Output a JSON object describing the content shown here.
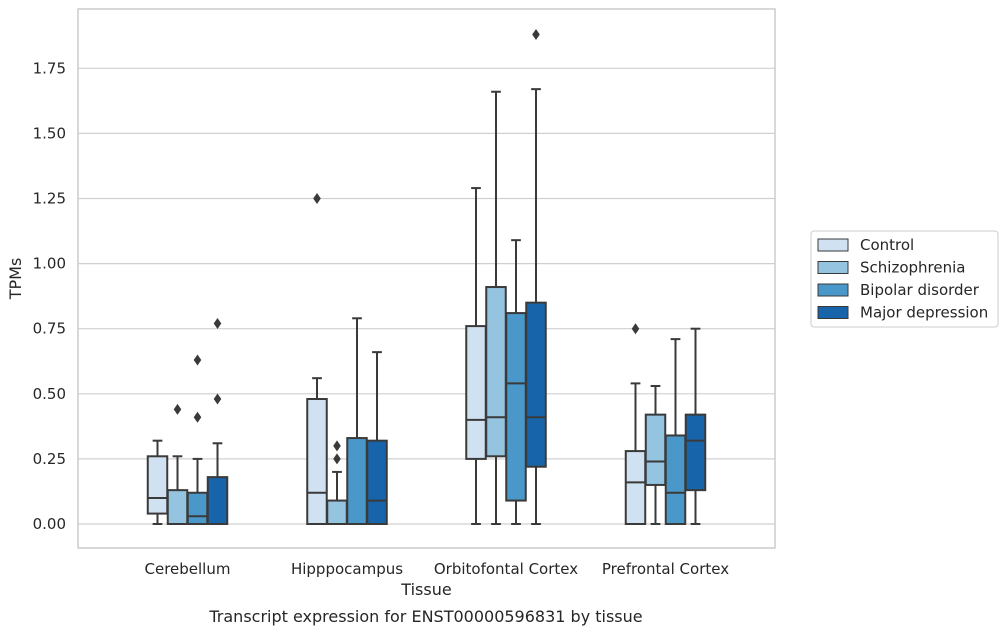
{
  "caption": "Transcript expression for ENST00000596831 by tissue",
  "chart_data": {
    "type": "boxplot",
    "xlabel": "Tissue",
    "ylabel": "TPMs",
    "ylim": [
      -0.09,
      1.97
    ],
    "yticks": [
      "0.00",
      "0.25",
      "0.50",
      "0.75",
      "1.00",
      "1.25",
      "1.50",
      "1.75"
    ],
    "grid": true,
    "legend_position": "right",
    "categories": [
      "Cerebellum",
      "Hipppocampus",
      "Orbitofontal Cortex",
      "Prefrontal Cortex"
    ],
    "series": [
      {
        "name": "Control",
        "color": "#d0e1f2",
        "boxes": [
          {
            "q1": 0.04,
            "median": 0.1,
            "q3": 0.26,
            "whislo": 0.0,
            "whishi": 0.32,
            "fliers": []
          },
          {
            "q1": 0.0,
            "median": 0.12,
            "q3": 0.48,
            "whislo": 0.0,
            "whishi": 0.56,
            "fliers": [
              1.25
            ]
          },
          {
            "q1": 0.25,
            "median": 0.4,
            "q3": 0.76,
            "whislo": 0.0,
            "whishi": 1.29,
            "fliers": []
          },
          {
            "q1": 0.0,
            "median": 0.16,
            "q3": 0.28,
            "whislo": 0.0,
            "whishi": 0.54,
            "fliers": [
              0.75
            ]
          }
        ]
      },
      {
        "name": "Schizophrenia",
        "color": "#94c4df",
        "boxes": [
          {
            "q1": 0.0,
            "median": 0.0,
            "q3": 0.13,
            "whislo": 0.0,
            "whishi": 0.26,
            "fliers": [
              0.44
            ]
          },
          {
            "q1": 0.0,
            "median": 0.0,
            "q3": 0.09,
            "whislo": 0.0,
            "whishi": 0.2,
            "fliers": [
              0.25,
              0.3
            ]
          },
          {
            "q1": 0.26,
            "median": 0.41,
            "q3": 0.91,
            "whislo": 0.0,
            "whishi": 1.66,
            "fliers": []
          },
          {
            "q1": 0.15,
            "median": 0.24,
            "q3": 0.42,
            "whislo": 0.0,
            "whishi": 0.53,
            "fliers": []
          }
        ]
      },
      {
        "name": "Bipolar disorder",
        "color": "#4a98c9",
        "boxes": [
          {
            "q1": 0.0,
            "median": 0.03,
            "q3": 0.12,
            "whislo": 0.0,
            "whishi": 0.25,
            "fliers": [
              0.41,
              0.63
            ]
          },
          {
            "q1": 0.0,
            "median": 0.0,
            "q3": 0.33,
            "whislo": 0.0,
            "whishi": 0.79,
            "fliers": []
          },
          {
            "q1": 0.09,
            "median": 0.54,
            "q3": 0.81,
            "whislo": 0.0,
            "whishi": 1.09,
            "fliers": []
          },
          {
            "q1": 0.0,
            "median": 0.12,
            "q3": 0.34,
            "whislo": 0.0,
            "whishi": 0.71,
            "fliers": []
          }
        ]
      },
      {
        "name": "Major depression",
        "color": "#1764ab",
        "boxes": [
          {
            "q1": 0.0,
            "median": 0.0,
            "q3": 0.18,
            "whislo": 0.0,
            "whishi": 0.31,
            "fliers": [
              0.48,
              0.77
            ]
          },
          {
            "q1": 0.0,
            "median": 0.09,
            "q3": 0.32,
            "whislo": 0.0,
            "whishi": 0.66,
            "fliers": []
          },
          {
            "q1": 0.22,
            "median": 0.41,
            "q3": 0.85,
            "whislo": 0.0,
            "whishi": 1.67,
            "fliers": [
              1.88
            ]
          },
          {
            "q1": 0.13,
            "median": 0.32,
            "q3": 0.42,
            "whislo": 0.0,
            "whishi": 0.75,
            "fliers": []
          }
        ]
      }
    ]
  }
}
